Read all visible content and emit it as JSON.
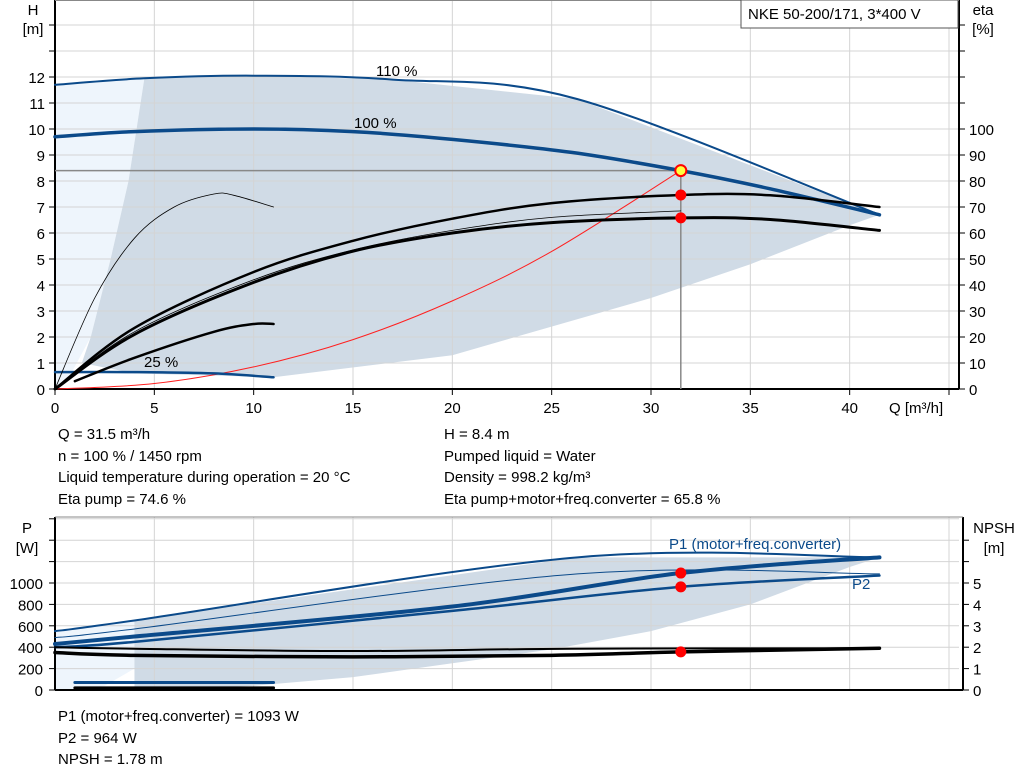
{
  "chart_data": [
    {
      "type": "line",
      "title": "NKE 50-200/171, 3*400 V",
      "xlabel": "Q [m³/h]",
      "ylabel": [
        "H",
        "[m]"
      ],
      "y2label": [
        "eta",
        "[%]"
      ],
      "xlim": [
        0,
        45
      ],
      "ylim": [
        0,
        15
      ],
      "y2lim": [
        0,
        150
      ],
      "grid": true,
      "xticks": [
        "0",
        "5",
        "10",
        "15",
        "20",
        "25",
        "30",
        "35",
        "40"
      ],
      "yticks": [
        "0",
        "1",
        "2",
        "3",
        "4",
        "5",
        "6",
        "7",
        "8",
        "9",
        "10",
        "11",
        "12"
      ],
      "y2ticks": [
        "0",
        "10",
        "20",
        "30",
        "40",
        "50",
        "60",
        "70",
        "80",
        "90",
        "100"
      ],
      "colors": {
        "head": "#0b4a8a",
        "eta": "#000000",
        "system": "#ff2020",
        "area": "#d0dbe6",
        "area_light": "#eef5fc",
        "point": "#ff0000",
        "duty_point": "#ffff40"
      },
      "annotations": [
        "110 %",
        "100 %",
        "25 %"
      ],
      "series": [
        {
          "id": "head-110",
          "axis": "H",
          "points": [
            [
              0,
              11.7
            ],
            [
              4.5,
              11.95
            ],
            [
              10,
              12.05
            ],
            [
              17,
              11.9
            ],
            [
              26.3,
              11.15
            ],
            [
              41.5,
              6.7
            ]
          ]
        },
        {
          "id": "head-100",
          "axis": "H",
          "points": [
            [
              0,
              9.7
            ],
            [
              4,
              9.9
            ],
            [
              10,
              10.0
            ],
            [
              15,
              9.9
            ],
            [
              20,
              9.6
            ],
            [
              26,
              9.1
            ],
            [
              31.5,
              8.4
            ],
            [
              36,
              7.7
            ],
            [
              41.5,
              6.7
            ]
          ]
        },
        {
          "id": "head-25",
          "axis": "H",
          "points": [
            [
              0,
              0.65
            ],
            [
              4,
              0.65
            ],
            [
              8,
              0.6
            ],
            [
              11,
              0.45
            ]
          ]
        },
        {
          "id": "eta-pump",
          "axis": "eta",
          "points": [
            [
              0,
              0
            ],
            [
              4,
              23.5
            ],
            [
              10,
              45
            ],
            [
              15,
              57
            ],
            [
              20,
              65.5
            ],
            [
              25,
              71.5
            ],
            [
              31.5,
              74.6
            ],
            [
              36,
              74.5
            ],
            [
              41.5,
              70
            ]
          ]
        },
        {
          "id": "eta-pump-thin",
          "axis": "eta",
          "points": [
            [
              0,
              0
            ],
            [
              4,
              22
            ],
            [
              10,
              42
            ],
            [
              15,
              53.5
            ],
            [
              20,
              61
            ],
            [
              25,
              66
            ],
            [
              31.5,
              68.5
            ]
          ]
        },
        {
          "id": "eta-total",
          "axis": "eta",
          "points": [
            [
              0,
              0
            ],
            [
              4,
              21
            ],
            [
              10,
              41
            ],
            [
              15,
              53
            ],
            [
              20,
              60
            ],
            [
              25,
              64
            ],
            [
              31.5,
              65.8
            ],
            [
              36,
              65.2
            ],
            [
              41.5,
              61
            ]
          ]
        },
        {
          "id": "eta-25",
          "axis": "eta",
          "points": [
            [
              1,
              3
            ],
            [
              4,
              12
            ],
            [
              8,
              22
            ],
            [
              10,
              25
            ],
            [
              11,
              25
            ]
          ]
        },
        {
          "id": "eta-small-pump",
          "axis": "eta",
          "points": [
            [
              0,
              0
            ],
            [
              2,
              35
            ],
            [
              4,
              58
            ],
            [
              6,
              70
            ],
            [
              8,
              75
            ],
            [
              9,
              74.5
            ],
            [
              11,
              70
            ]
          ]
        }
      ],
      "system_curve": {
        "points": [
          [
            0,
            0
          ],
          [
            5,
            0.21
          ],
          [
            10,
            0.85
          ],
          [
            15,
            1.9
          ],
          [
            20,
            3.39
          ],
          [
            25,
            5.29
          ],
          [
            31.5,
            8.4
          ]
        ]
      },
      "duty_point": {
        "Q": 31.5,
        "H": 8.4,
        "eta_pump": 74.6,
        "eta_total": 65.8
      }
    },
    {
      "type": "line",
      "ylabel": [
        "P",
        "[W]"
      ],
      "y2label": [
        "NPSH",
        "[m]"
      ],
      "xlim": [
        0,
        45
      ],
      "ylim": [
        0,
        1600
      ],
      "y2lim": [
        0,
        8
      ],
      "grid": true,
      "yticks": [
        "0",
        "200",
        "400",
        "600",
        "800",
        "1000"
      ],
      "y2ticks": [
        "0",
        "1",
        "2",
        "3",
        "4",
        "5"
      ],
      "legend": [
        "P1 (motor+freq.converter)",
        "P2"
      ],
      "series": [
        {
          "id": "p1-110",
          "axis": "P",
          "points": [
            [
              0,
              550
            ],
            [
              4,
              650
            ],
            [
              26.3,
              1240
            ],
            [
              41.5,
              1240
            ]
          ]
        },
        {
          "id": "p1-thin",
          "axis": "P",
          "points": [
            [
              0,
              490
            ],
            [
              4,
              570
            ],
            [
              26.3,
              1085
            ],
            [
              41.5,
              1085
            ]
          ]
        },
        {
          "id": "p1",
          "axis": "P",
          "points": [
            [
              0,
              430
            ],
            [
              4,
              500
            ],
            [
              20,
              780
            ],
            [
              31.5,
              1093
            ],
            [
              41.5,
              1240
            ]
          ]
        },
        {
          "id": "p2",
          "axis": "P",
          "points": [
            [
              0,
              400
            ],
            [
              4,
              450
            ],
            [
              20,
              740
            ],
            [
              31.5,
              964
            ],
            [
              41.5,
              1070
            ]
          ]
        },
        {
          "id": "p-25",
          "axis": "P",
          "points": [
            [
              1,
              70
            ],
            [
              11,
              70
            ]
          ]
        },
        {
          "id": "npsh-thin",
          "axis": "NPSH",
          "points": [
            [
              0,
              2.0
            ],
            [
              4,
              1.93
            ],
            [
              15,
              1.82
            ],
            [
              26,
              1.93
            ],
            [
              41.5,
              1.95
            ]
          ]
        },
        {
          "id": "npsh",
          "axis": "NPSH",
          "points": [
            [
              0,
              1.75
            ],
            [
              4,
              1.62
            ],
            [
              15,
              1.55
            ],
            [
              25,
              1.62
            ],
            [
              31.5,
              1.78
            ],
            [
              41.5,
              1.95
            ]
          ]
        },
        {
          "id": "npsh-25",
          "axis": "NPSH",
          "points": [
            [
              1,
              0.1
            ],
            [
              11,
              0.1
            ]
          ]
        }
      ],
      "duty_point": {
        "P1": 1093,
        "P2": 964,
        "NPSH": 1.78
      }
    }
  ],
  "info_top": [
    "Q = 31.5 m³/h",
    "H = 8.4 m",
    "n = 100 % / 1450 rpm",
    "Pumped liquid = Water",
    "Liquid temperature during operation = 20 °C",
    "Density = 998.2 kg/m³",
    "Eta pump = 74.6 %",
    "Eta pump+motor+freq.converter = 65.8 %"
  ],
  "info_bottom": [
    "P1 (motor+freq.converter) = 1093 W",
    "P2 = 964 W",
    "NPSH = 1.78 m"
  ]
}
